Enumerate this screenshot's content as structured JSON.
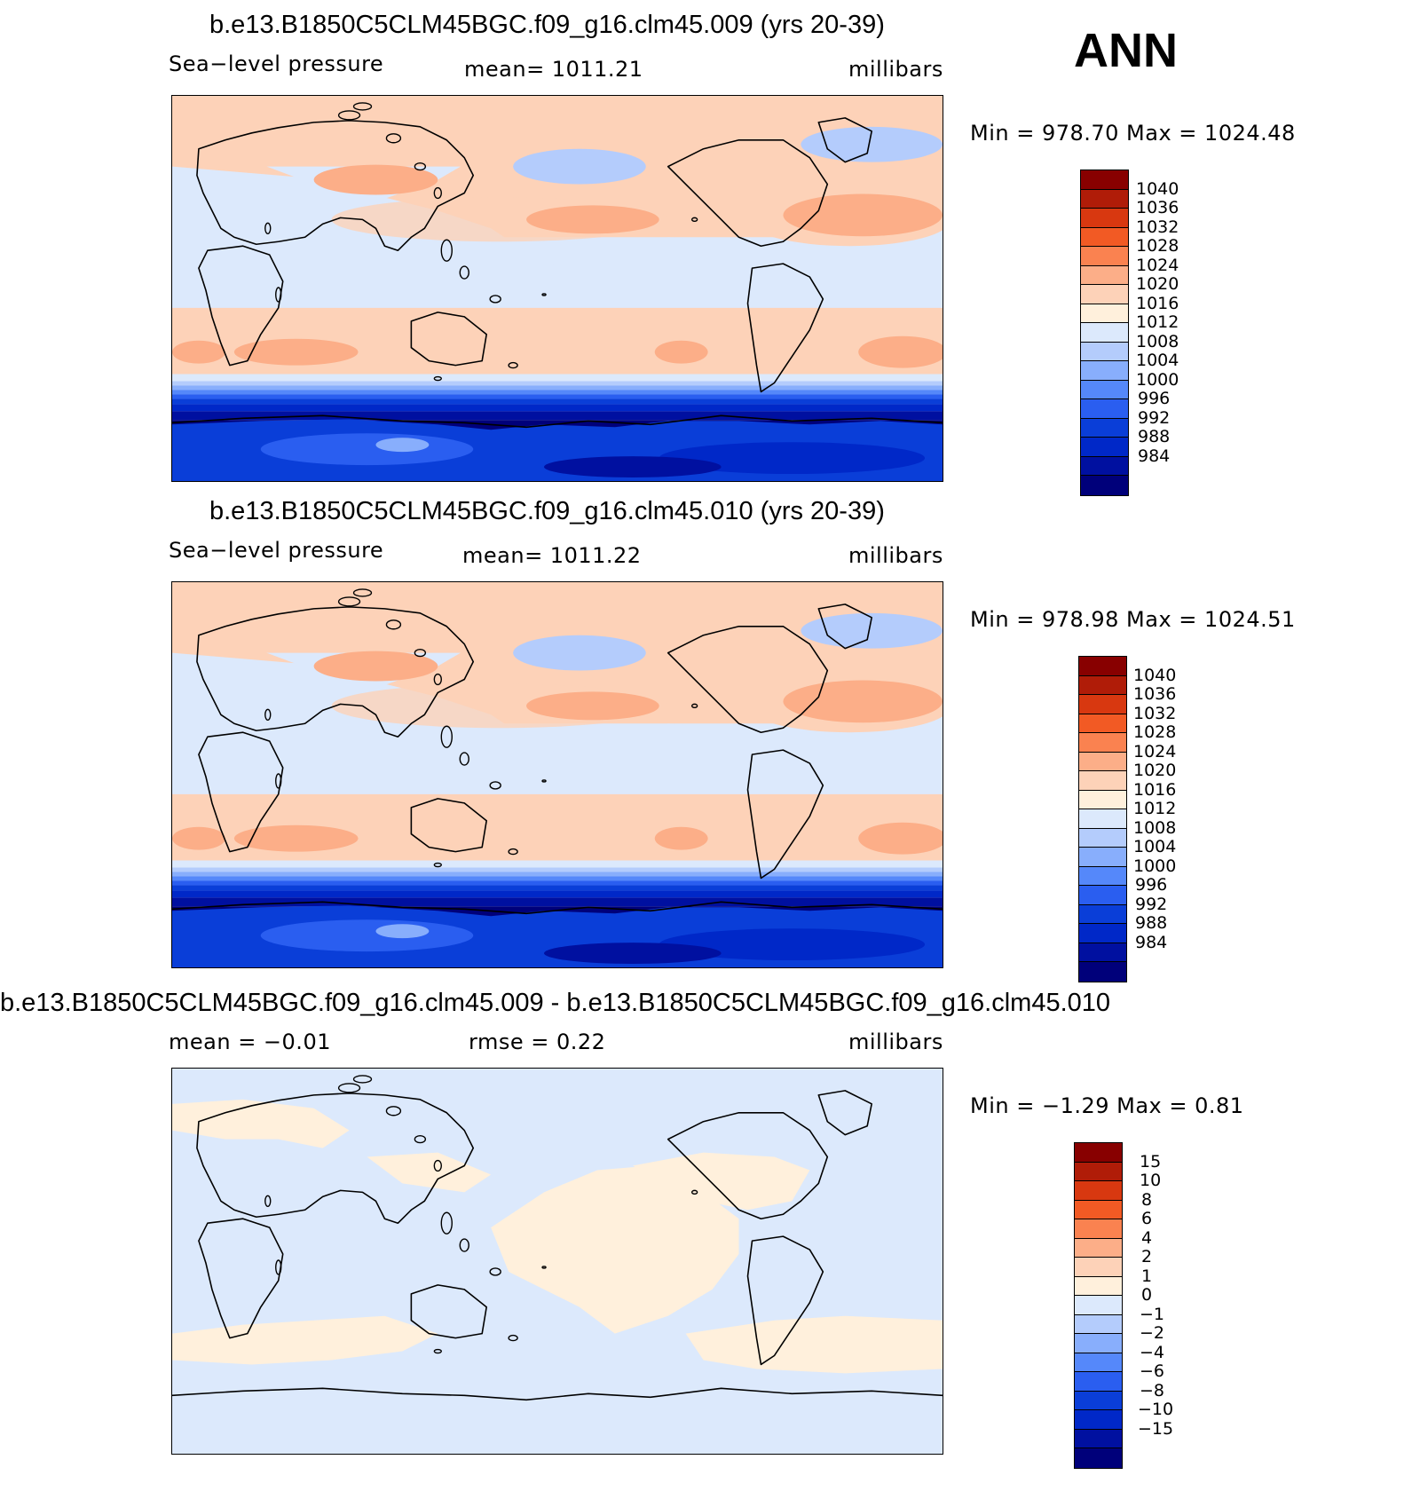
{
  "season": "ANN",
  "palette_abs": [
    "#00007a",
    "#0010a0",
    "#0028c8",
    "#0a3ed8",
    "#2a5ef0",
    "#5588fa",
    "#88aefc",
    "#b4ccfc",
    "#dce9fc",
    "#fff0dc",
    "#fdd2b8",
    "#fcae88",
    "#fa8250",
    "#f25a24",
    "#d83810",
    "#b01c08",
    "#880000"
  ],
  "panels": [
    {
      "title": "b.e13.B1850C5CLM45BGC.f09_g16.clm45.009 (yrs 20-39)",
      "left_label": "Sea−level pressure",
      "center_label": "mean= 1011.21",
      "units": "millibars",
      "minmax": "Min = 978.70 Max = 1024.48",
      "ticks": [
        "1040",
        "1036",
        "1032",
        "1028",
        "1024",
        "1020",
        "1016",
        "1012",
        "1008",
        "1004",
        "1000",
        "996",
        "992",
        "988",
        "984"
      ]
    },
    {
      "title": "b.e13.B1850C5CLM45BGC.f09_g16.clm45.010 (yrs 20-39)",
      "left_label": "Sea−level pressure",
      "center_label": "mean= 1011.22",
      "units": "millibars",
      "minmax": "Min = 978.98 Max = 1024.51",
      "ticks": [
        "1040",
        "1036",
        "1032",
        "1028",
        "1024",
        "1020",
        "1016",
        "1012",
        "1008",
        "1004",
        "1000",
        "996",
        "992",
        "988",
        "984"
      ]
    },
    {
      "title": "b.e13.B1850C5CLM45BGC.f09_g16.clm45.009 - b.e13.B1850C5CLM45BGC.f09_g16.clm45.010",
      "left_label": "mean = −0.01",
      "center_label": "rmse = 0.22",
      "units": "millibars",
      "minmax": "Min = −1.29 Max = 0.81",
      "ticks": [
        "15",
        "10",
        "8",
        "6",
        "4",
        "2",
        "1",
        "0",
        "−1",
        "−2",
        "−4",
        "−6",
        "−8",
        "−10",
        "−15"
      ]
    }
  ]
}
